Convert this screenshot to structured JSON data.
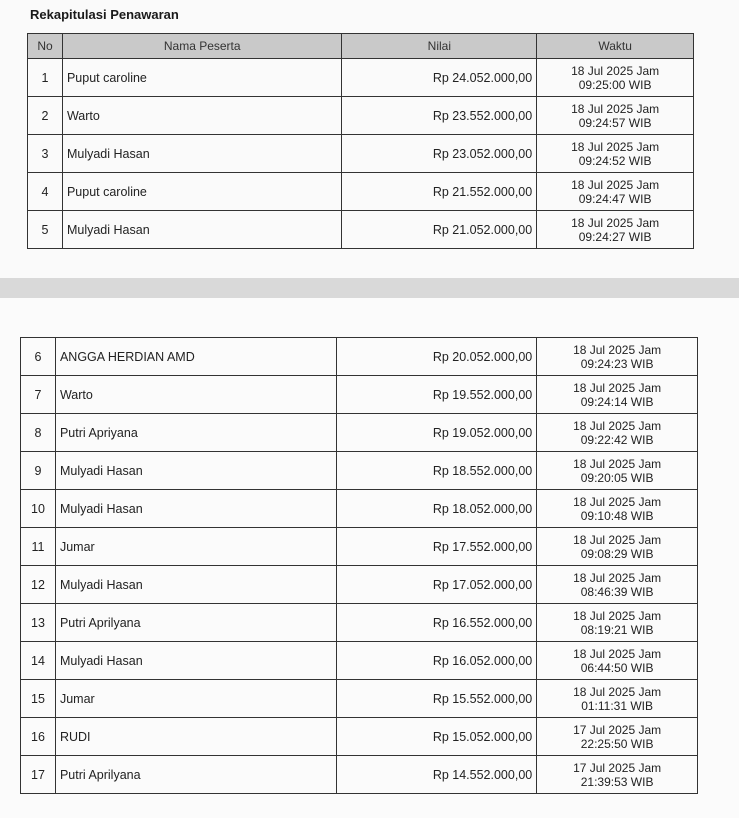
{
  "title": "Rekapitulasi Penawaran",
  "columns": [
    "No",
    "Nama Peserta",
    "Nilai",
    "Waktu"
  ],
  "rows_page1": [
    {
      "no": "1",
      "name": "Puput caroline",
      "value": "Rp 24.052.000,00",
      "date": "18 Jul 2025 Jam",
      "time": "09:25:00 WIB"
    },
    {
      "no": "2",
      "name": "Warto",
      "value": "Rp 23.552.000,00",
      "date": "18 Jul 2025 Jam",
      "time": "09:24:57 WIB"
    },
    {
      "no": "3",
      "name": "Mulyadi Hasan",
      "value": "Rp 23.052.000,00",
      "date": "18 Jul 2025 Jam",
      "time": "09:24:52 WIB"
    },
    {
      "no": "4",
      "name": "Puput caroline",
      "value": "Rp 21.552.000,00",
      "date": "18 Jul 2025 Jam",
      "time": "09:24:47 WIB"
    },
    {
      "no": "5",
      "name": "Mulyadi Hasan",
      "value": "Rp 21.052.000,00",
      "date": "18 Jul 2025 Jam",
      "time": "09:24:27 WIB"
    }
  ],
  "rows_page2": [
    {
      "no": "6",
      "name": "ANGGA HERDIAN AMD",
      "value": "Rp 20.052.000,00",
      "date": "18 Jul 2025 Jam",
      "time": "09:24:23 WIB"
    },
    {
      "no": "7",
      "name": "Warto",
      "value": "Rp 19.552.000,00",
      "date": "18 Jul 2025 Jam",
      "time": "09:24:14 WIB"
    },
    {
      "no": "8",
      "name": "Putri Apriyana",
      "value": "Rp 19.052.000,00",
      "date": "18 Jul 2025 Jam",
      "time": "09:22:42 WIB"
    },
    {
      "no": "9",
      "name": "Mulyadi Hasan",
      "value": "Rp 18.552.000,00",
      "date": "18 Jul 2025 Jam",
      "time": "09:20:05 WIB"
    },
    {
      "no": "10",
      "name": "Mulyadi Hasan",
      "value": "Rp 18.052.000,00",
      "date": "18 Jul 2025 Jam",
      "time": "09:10:48 WIB"
    },
    {
      "no": "11",
      "name": "Jumar",
      "value": "Rp 17.552.000,00",
      "date": "18 Jul 2025 Jam",
      "time": "09:08:29 WIB"
    },
    {
      "no": "12",
      "name": "Mulyadi Hasan",
      "value": "Rp 17.052.000,00",
      "date": "18 Jul 2025 Jam",
      "time": "08:46:39 WIB"
    },
    {
      "no": "13",
      "name": "Putri Aprilyana",
      "value": "Rp 16.552.000,00",
      "date": "18 Jul 2025 Jam",
      "time": "08:19:21 WIB"
    },
    {
      "no": "14",
      "name": "Mulyadi Hasan",
      "value": "Rp 16.052.000,00",
      "date": "18 Jul 2025 Jam",
      "time": "06:44:50 WIB"
    },
    {
      "no": "15",
      "name": "Jumar",
      "value": "Rp 15.552.000,00",
      "date": "18 Jul 2025 Jam",
      "time": "01:11:31 WIB"
    },
    {
      "no": "16",
      "name": "RUDI",
      "value": "Rp 15.052.000,00",
      "date": "17 Jul 2025 Jam",
      "time": "22:25:50 WIB"
    },
    {
      "no": "17",
      "name": "Putri Aprilyana",
      "value": "Rp 14.552.000,00",
      "date": "17 Jul 2025 Jam",
      "time": "21:39:53 WIB"
    }
  ]
}
